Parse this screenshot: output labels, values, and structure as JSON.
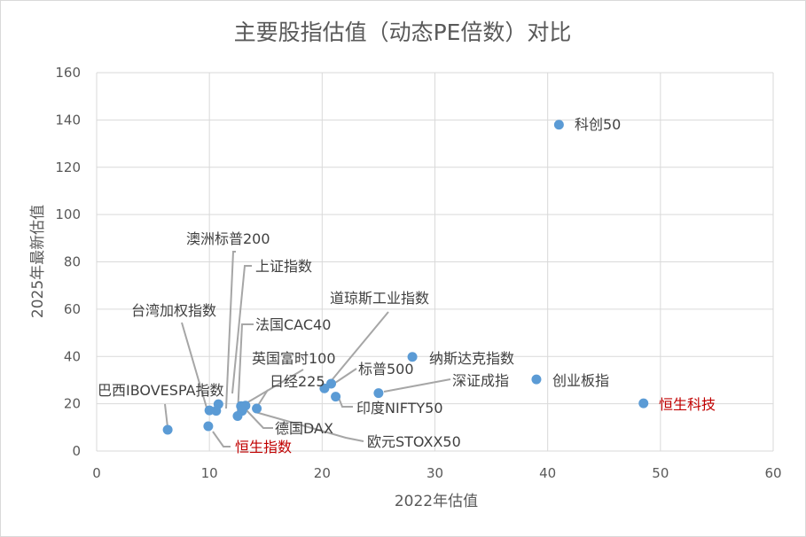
{
  "chart_data": {
    "type": "scatter",
    "title": "主要股指估值（动态PE倍数）对比",
    "xlabel": "2022年估值",
    "ylabel": "2025年最新估值",
    "xlim": [
      0,
      60
    ],
    "ylim": [
      0,
      160
    ],
    "x_ticks": [
      "0",
      "10",
      "20",
      "30",
      "40",
      "50",
      "60"
    ],
    "y_ticks": [
      "0",
      "20",
      "40",
      "60",
      "80",
      "100",
      "120",
      "140",
      "160"
    ],
    "grid": true,
    "legend": "none",
    "marker_color": "#5b9bd5",
    "highlight_color": "#c00000",
    "points": [
      {
        "name": "科创50",
        "x": 41.0,
        "y": 138.0
      },
      {
        "name": "恒生科技",
        "x": 48.5,
        "y": 20.2,
        "highlight": true
      },
      {
        "name": "创业板指",
        "x": 39.0,
        "y": 30.3
      },
      {
        "name": "纳斯达克指数",
        "x": 28.0,
        "y": 39.8
      },
      {
        "name": "深证成指",
        "x": 25.0,
        "y": 24.5
      },
      {
        "name": "印度NIFTY50",
        "x": 21.2,
        "y": 23.0
      },
      {
        "name": "标普500",
        "x": 20.8,
        "y": 28.5
      },
      {
        "name": "道琼斯工业指数",
        "x": 20.2,
        "y": 26.5
      },
      {
        "name": "英国富时100",
        "x": 12.8,
        "y": 19.0
      },
      {
        "name": "日经225",
        "x": 14.2,
        "y": 18.0
      },
      {
        "name": "欧元STOXX50",
        "x": 13.2,
        "y": 19.2
      },
      {
        "name": "德国DAX",
        "x": 12.9,
        "y": 17.0
      },
      {
        "name": "法国CAC40",
        "x": 12.5,
        "y": 14.8
      },
      {
        "name": "上证指数",
        "x": 10.8,
        "y": 19.8
      },
      {
        "name": "澳洲标普200",
        "x": 10.6,
        "y": 17.0
      },
      {
        "name": "台湾加权指数",
        "x": 10.0,
        "y": 17.2
      },
      {
        "name": "巴西IBOVESPA指数",
        "x": 6.3,
        "y": 9.0
      },
      {
        "name": "恒生指数",
        "x": 9.9,
        "y": 10.5,
        "highlight": true
      }
    ]
  }
}
